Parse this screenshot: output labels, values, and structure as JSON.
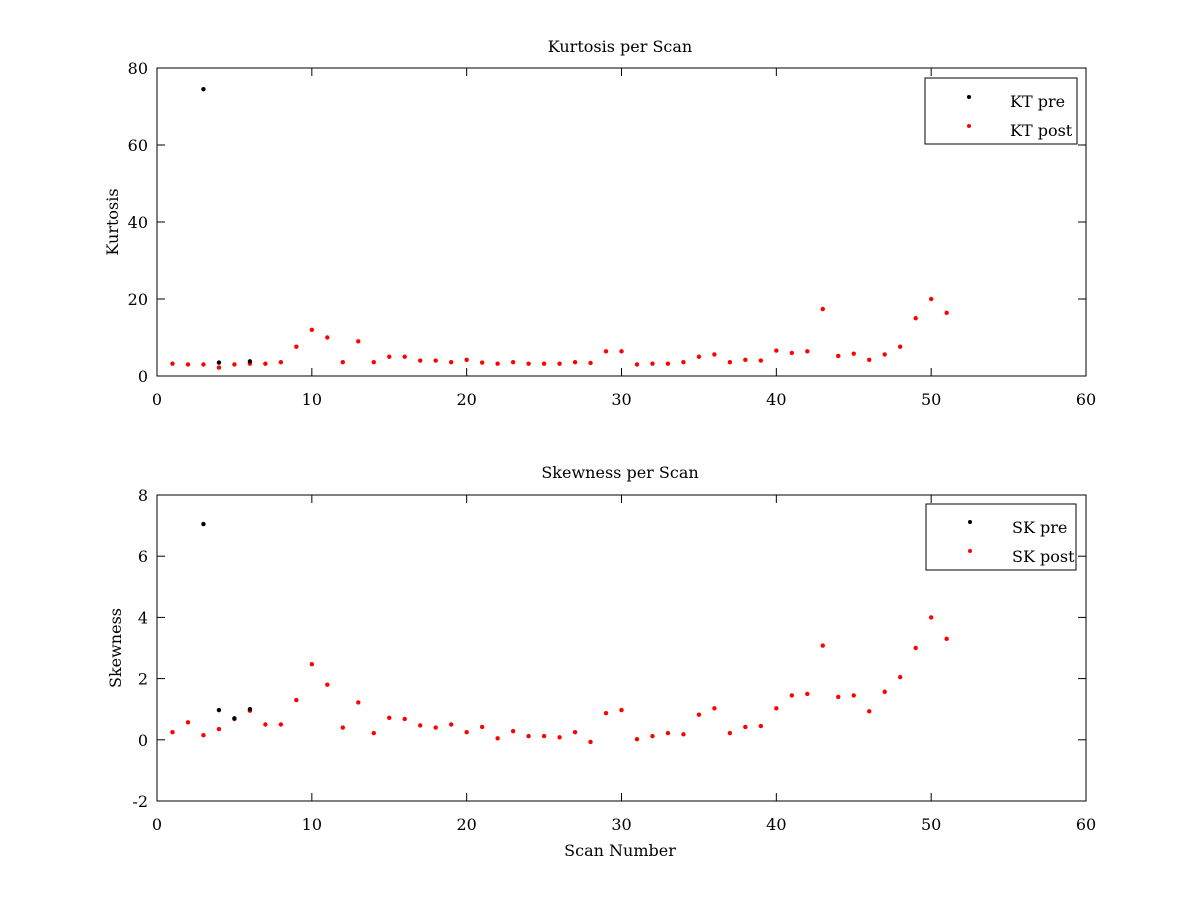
{
  "figure": {
    "background": "#ffffff",
    "axis_color": "#000000"
  },
  "chart_data": [
    {
      "type": "scatter",
      "title": "Kurtosis per Scan",
      "xlabel": "",
      "ylabel": "Kurtosis",
      "xlim": [
        0,
        60
      ],
      "ylim": [
        0,
        80
      ],
      "xticks": [
        0,
        10,
        20,
        30,
        40,
        50,
        60
      ],
      "yticks": [
        0,
        20,
        40,
        60,
        80
      ],
      "grid": false,
      "legend_position": "top-right",
      "series": [
        {
          "name": "KT pre",
          "color": "#000000",
          "marker": "dot",
          "points": [
            [
              3,
              74.5
            ],
            [
              4,
              3.5
            ],
            [
              6,
              3.8
            ]
          ]
        },
        {
          "name": "KT post",
          "color": "#ff0000",
          "marker": "dot",
          "points": [
            [
              1,
              3.2
            ],
            [
              2,
              3.0
            ],
            [
              3,
              3.0
            ],
            [
              4,
              2.2
            ],
            [
              5,
              3.0
            ],
            [
              6,
              3.2
            ],
            [
              7,
              3.2
            ],
            [
              8,
              3.6
            ],
            [
              9,
              7.6
            ],
            [
              10,
              12.0
            ],
            [
              11,
              10.0
            ],
            [
              12,
              3.6
            ],
            [
              13,
              9.0
            ],
            [
              14,
              3.6
            ],
            [
              15,
              5.0
            ],
            [
              16,
              5.0
            ],
            [
              17,
              4.0
            ],
            [
              18,
              4.0
            ],
            [
              19,
              3.6
            ],
            [
              20,
              4.2
            ],
            [
              21,
              3.5
            ],
            [
              22,
              3.2
            ],
            [
              23,
              3.6
            ],
            [
              24,
              3.2
            ],
            [
              25,
              3.2
            ],
            [
              26,
              3.2
            ],
            [
              27,
              3.6
            ],
            [
              28,
              3.4
            ],
            [
              29,
              6.4
            ],
            [
              30,
              6.4
            ],
            [
              31,
              3.0
            ],
            [
              32,
              3.2
            ],
            [
              33,
              3.2
            ],
            [
              34,
              3.6
            ],
            [
              35,
              5.0
            ],
            [
              36,
              5.6
            ],
            [
              37,
              3.6
            ],
            [
              38,
              4.2
            ],
            [
              39,
              4.0
            ],
            [
              40,
              6.6
            ],
            [
              41,
              6.0
            ],
            [
              42,
              6.4
            ],
            [
              43,
              17.4
            ],
            [
              44,
              5.2
            ],
            [
              45,
              5.8
            ],
            [
              46,
              4.2
            ],
            [
              47,
              5.6
            ],
            [
              48,
              7.6
            ],
            [
              49,
              15.0
            ],
            [
              50,
              20.0
            ],
            [
              51,
              16.4
            ]
          ]
        }
      ]
    },
    {
      "type": "scatter",
      "title": "Skewness per Scan",
      "xlabel": "Scan Number",
      "ylabel": "Skewness",
      "xlim": [
        0,
        60
      ],
      "ylim": [
        -2,
        8
      ],
      "xticks": [
        0,
        10,
        20,
        30,
        40,
        50,
        60
      ],
      "yticks": [
        -2,
        0,
        2,
        4,
        6,
        8
      ],
      "grid": false,
      "legend_position": "top-right",
      "series": [
        {
          "name": "SK pre",
          "color": "#000000",
          "marker": "dot",
          "points": [
            [
              3,
              7.05
            ],
            [
              4,
              0.97
            ],
            [
              5,
              0.7
            ],
            [
              6,
              1.0
            ]
          ]
        },
        {
          "name": "SK post",
          "color": "#ff0000",
          "marker": "dot",
          "points": [
            [
              1,
              0.25
            ],
            [
              2,
              0.57
            ],
            [
              3,
              0.15
            ],
            [
              4,
              0.35
            ],
            [
              5,
              0.68
            ],
            [
              6,
              0.95
            ],
            [
              7,
              0.5
            ],
            [
              8,
              0.5
            ],
            [
              9,
              1.3
            ],
            [
              10,
              2.47
            ],
            [
              11,
              1.8
            ],
            [
              12,
              0.4
            ],
            [
              13,
              1.22
            ],
            [
              14,
              0.22
            ],
            [
              15,
              0.72
            ],
            [
              16,
              0.68
            ],
            [
              17,
              0.47
            ],
            [
              18,
              0.4
            ],
            [
              19,
              0.5
            ],
            [
              20,
              0.25
            ],
            [
              21,
              0.42
            ],
            [
              22,
              0.05
            ],
            [
              23,
              0.28
            ],
            [
              24,
              0.12
            ],
            [
              25,
              0.12
            ],
            [
              26,
              0.08
            ],
            [
              27,
              0.25
            ],
            [
              28,
              -0.07
            ],
            [
              29,
              0.87
            ],
            [
              30,
              0.97
            ],
            [
              31,
              0.02
            ],
            [
              32,
              0.12
            ],
            [
              33,
              0.22
            ],
            [
              34,
              0.18
            ],
            [
              35,
              0.82
            ],
            [
              36,
              1.03
            ],
            [
              37,
              0.22
            ],
            [
              38,
              0.42
            ],
            [
              39,
              0.45
            ],
            [
              40,
              1.03
            ],
            [
              41,
              1.45
            ],
            [
              42,
              1.5
            ],
            [
              43,
              3.08
            ],
            [
              44,
              1.4
            ],
            [
              45,
              1.45
            ],
            [
              46,
              0.93
            ],
            [
              47,
              1.57
            ],
            [
              48,
              2.05
            ],
            [
              49,
              3.0
            ],
            [
              50,
              4.0
            ],
            [
              51,
              3.3
            ]
          ]
        }
      ]
    }
  ]
}
